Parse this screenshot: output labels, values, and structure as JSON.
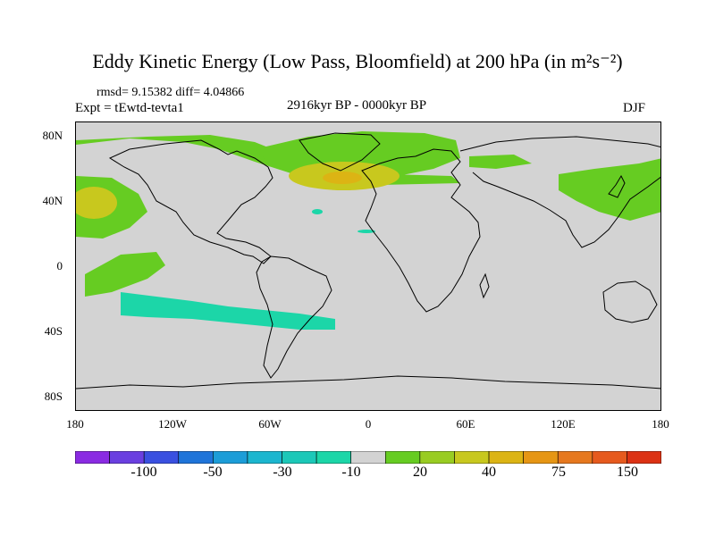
{
  "title": "Eddy Kinetic Energy (Low Pass, Bloomfield) at 200 hPa (in m²s⁻²)",
  "stats": "rmsd= 9.15382 diff= 4.04866",
  "expt": "Expt = tEwtd-tevta1",
  "period": "2916kyr BP - 0000kyr BP",
  "season": "DJF",
  "lat_ticks": [
    "80N",
    "40N",
    "0",
    "40S",
    "80S"
  ],
  "lon_ticks": [
    "180",
    "120W",
    "60W",
    "0",
    "60E",
    "120E",
    "180"
  ],
  "colorbar": {
    "colors": [
      "#8a2be2",
      "#6a3fe0",
      "#3a50e0",
      "#1f74d9",
      "#1c9dd8",
      "#1cb6cf",
      "#1cc8b8",
      "#1cd6a8",
      "#d3d3d3",
      "#66cc22",
      "#99cc22",
      "#c8c81e",
      "#dcb414",
      "#e69614",
      "#e6781e",
      "#e65a1e",
      "#dc3214"
    ],
    "labels": [
      "-100",
      "-50",
      "-30",
      "-10",
      "20",
      "40",
      "75",
      "150"
    ]
  },
  "colors": {
    "land_mask": "#d3d3d3",
    "coast": "#000000"
  }
}
